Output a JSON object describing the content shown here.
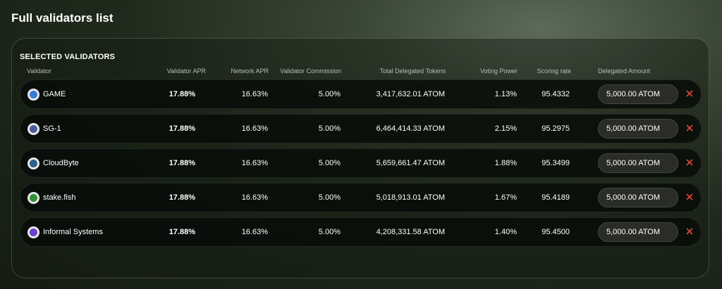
{
  "title": "Full validators list",
  "section_title": "SELECTED VALIDATORS",
  "headers": [
    "Validator",
    "Validator APR",
    "Network APR",
    "Validator Commission",
    "Total Delegated Tokens",
    "Voting Power",
    "Scoring rate",
    "Delegated Amount"
  ],
  "rows": [
    {
      "validator": "GAME",
      "validator_apr": "17.88%",
      "network_apr": "16.63%",
      "commission": "5.00%",
      "total_delegated": "3,417,632.01 ATOM",
      "voting_power": "1.13%",
      "scoring_rate": "95.4332",
      "delegated_amount": "5,000.00 ATOM"
    },
    {
      "validator": "SG-1",
      "validator_apr": "17.88%",
      "network_apr": "16.63%",
      "commission": "5.00%",
      "total_delegated": "6,464,414.33 ATOM",
      "voting_power": "2.15%",
      "scoring_rate": "95.2975",
      "delegated_amount": "5,000.00 ATOM"
    },
    {
      "validator": "CloudByte",
      "validator_apr": "17.88%",
      "network_apr": "16.63%",
      "commission": "5.00%",
      "total_delegated": "5,659,661.47 ATOM",
      "voting_power": "1.88%",
      "scoring_rate": "95.3499",
      "delegated_amount": "5,000.00 ATOM"
    },
    {
      "validator": "stake.fish",
      "validator_apr": "17.88%",
      "network_apr": "16.63%",
      "commission": "5.00%",
      "total_delegated": "5,018,913.01 ATOM",
      "voting_power": "1.67%",
      "scoring_rate": "95.4189",
      "delegated_amount": "5,000.00 ATOM"
    },
    {
      "validator": "Informal Systems",
      "validator_apr": "17.88%",
      "network_apr": "16.63%",
      "commission": "5.00%",
      "total_delegated": "4,208,331.58 ATOM",
      "voting_power": "1.40%",
      "scoring_rate": "95.4500",
      "delegated_amount": "5,000.00 ATOM"
    }
  ]
}
